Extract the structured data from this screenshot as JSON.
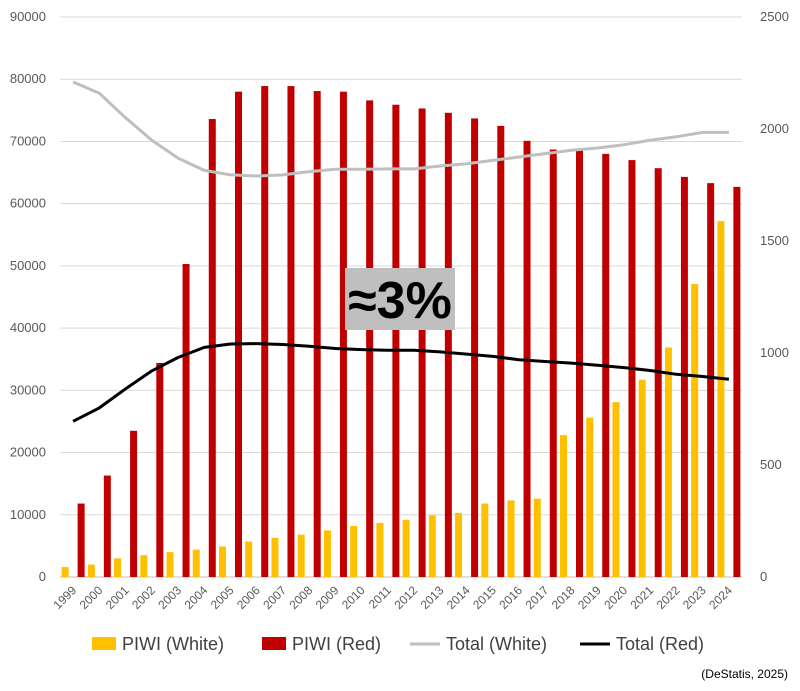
{
  "chart_data": {
    "type": "bar",
    "categories": [
      "1999",
      "2000",
      "2001",
      "2002",
      "2003",
      "2004",
      "2005",
      "2006",
      "2007",
      "2008",
      "2009",
      "2010",
      "2011",
      "2012",
      "2013",
      "2014",
      "2015",
      "2016",
      "2017",
      "2018",
      "2019",
      "2020",
      "2021",
      "2022",
      "2023",
      "2024"
    ],
    "series": [
      {
        "name": "PIWI (White)",
        "type": "bar",
        "axis": "left",
        "color": "#FFC000",
        "values": [
          1600,
          2000,
          3000,
          3500,
          4000,
          4400,
          4900,
          5700,
          6300,
          6800,
          7500,
          8200,
          8700,
          9200,
          9900,
          10300,
          11800,
          12300,
          12600,
          22800,
          25600,
          28100,
          31700,
          36900,
          47100,
          57200
        ]
      },
      {
        "name": "PIWI (Red)",
        "type": "bar",
        "axis": "left",
        "color": "#C00000",
        "values": [
          11800,
          16300,
          23500,
          34400,
          50300,
          73600,
          78000,
          78900,
          78900,
          78100,
          78000,
          76600,
          75900,
          75300,
          74600,
          73700,
          72500,
          70100,
          68700,
          68600,
          68000,
          67000,
          65700,
          64300,
          63300,
          62700
        ]
      },
      {
        "name": "Total (White)",
        "type": "line",
        "axis": "right",
        "color": "#BFBFBF",
        "values": [
          2210,
          2160,
          2050,
          1950,
          1870,
          1815,
          1795,
          1790,
          1795,
          1810,
          1820,
          1820,
          1822,
          1822,
          1835,
          1845,
          1860,
          1875,
          1890,
          1905,
          1915,
          1930,
          1950,
          1965,
          1985,
          1985
        ]
      },
      {
        "name": "Total (Red)",
        "type": "line",
        "axis": "right",
        "color": "#000000",
        "values": [
          695,
          755,
          840,
          920,
          980,
          1025,
          1040,
          1042,
          1038,
          1030,
          1020,
          1015,
          1012,
          1012,
          1005,
          995,
          985,
          970,
          962,
          955,
          945,
          935,
          922,
          905,
          895,
          883
        ]
      }
    ],
    "y_left": {
      "min": 0,
      "max": 90000,
      "ticks": [
        "0",
        "10000",
        "20000",
        "30000",
        "40000",
        "50000",
        "60000",
        "70000",
        "80000",
        "90000"
      ]
    },
    "y_right": {
      "min": 0,
      "max": 2500,
      "ticks": [
        "0",
        "500",
        "1000",
        "1500",
        "2000",
        "2500"
      ]
    },
    "grid": true,
    "legend": {
      "placement": "bottom"
    },
    "annotation": {
      "text": "≈3%"
    },
    "source": "(DeStatis, 2025)"
  }
}
